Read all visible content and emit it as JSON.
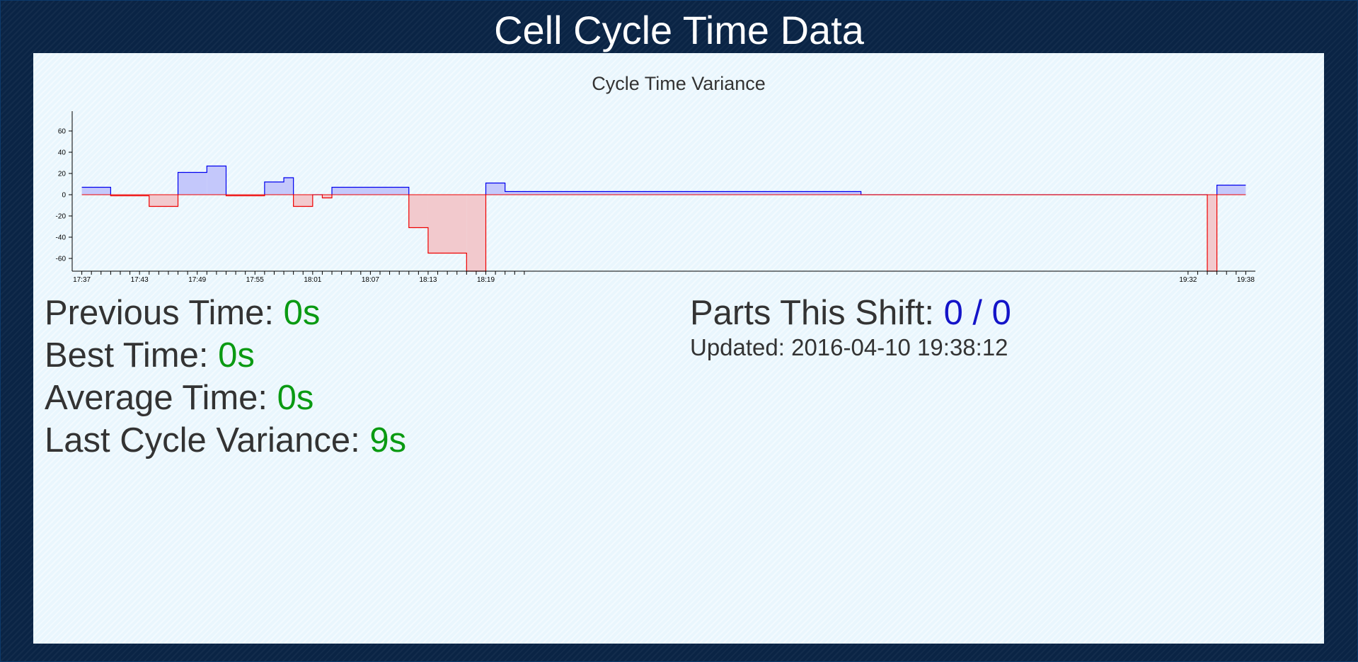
{
  "page": {
    "title": "Cell Cycle Time Data"
  },
  "stats": {
    "previous": {
      "label": "Previous Time: ",
      "value": "0s"
    },
    "best": {
      "label": "Best Time: ",
      "value": "0s"
    },
    "average": {
      "label": "Average Time: ",
      "value": "0s"
    },
    "variance": {
      "label": "Last Cycle Variance: ",
      "value": "9s"
    }
  },
  "shift": {
    "parts_label": "Parts This Shift: ",
    "parts_value": "0 / 0",
    "updated": "Updated: 2016-04-10 19:38:12"
  },
  "colors": {
    "positive_line": "#0000ee",
    "positive_fill": "#c4c8fb",
    "negative_line": "#ee0000",
    "negative_fill": "#f2c9cd",
    "value_green": "#0a9a12",
    "value_blue": "#1414c8"
  },
  "chart_data": {
    "type": "area",
    "title": "Cycle Time Variance",
    "xlabel": "",
    "ylabel": "",
    "interpolation": "step-after",
    "x_domain": [
      "17:36",
      "19:39"
    ],
    "ylim": [
      -72,
      72
    ],
    "y_ticks": [
      -60,
      -40,
      -20,
      0,
      20,
      40,
      60
    ],
    "x_tick_labels": [
      "17:37",
      "17:43",
      "17:49",
      "17:55",
      "18:01",
      "18:07",
      "18:13",
      "18:19",
      "19:32",
      "19:38"
    ],
    "x_minor_tick_minutes": 1,
    "baseline": 0,
    "grid": false,
    "points": [
      {
        "t": "17:37",
        "v": 7
      },
      {
        "t": "17:40",
        "v": -1
      },
      {
        "t": "17:44",
        "v": -11
      },
      {
        "t": "17:47",
        "v": 21
      },
      {
        "t": "17:50",
        "v": 27
      },
      {
        "t": "17:52",
        "v": -1
      },
      {
        "t": "17:56",
        "v": 12
      },
      {
        "t": "17:58",
        "v": 16
      },
      {
        "t": "17:59",
        "v": -11
      },
      {
        "t": "18:01",
        "v": 0
      },
      {
        "t": "18:02",
        "v": -3
      },
      {
        "t": "18:03",
        "v": 7
      },
      {
        "t": "18:11",
        "v": -31
      },
      {
        "t": "18:13",
        "v": -55
      },
      {
        "t": "18:17",
        "v": -72
      },
      {
        "t": "18:19",
        "v": 11
      },
      {
        "t": "18:21",
        "v": 3
      },
      {
        "t": "18:58",
        "v": 0
      },
      {
        "t": "19:34",
        "v": -72
      },
      {
        "t": "19:35",
        "v": 9
      },
      {
        "t": "19:38",
        "v": 9
      }
    ]
  }
}
